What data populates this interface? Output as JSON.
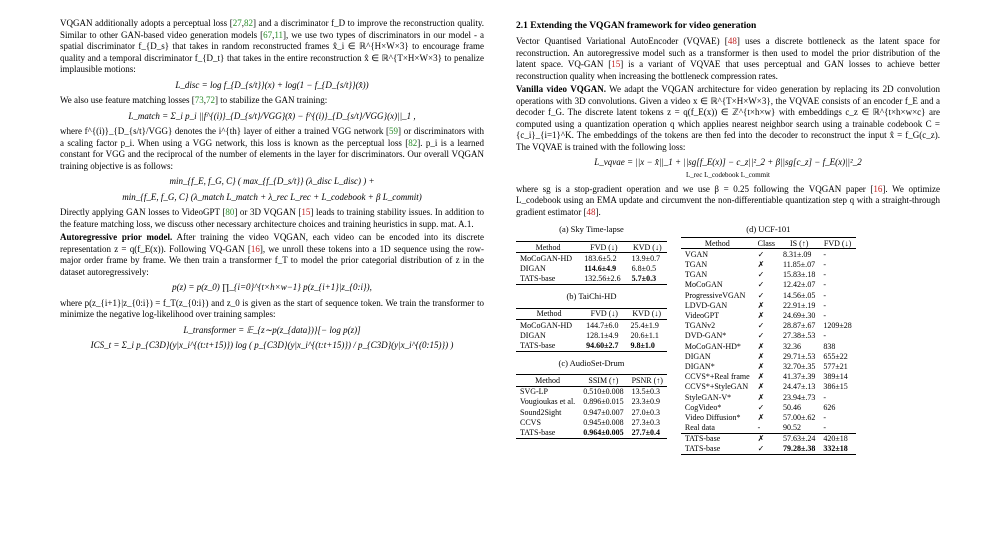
{
  "left": {
    "p1_a": "VQGAN additionally adopts a perceptual loss [",
    "p1_c1": "27",
    "p1_b": ",",
    "p1_c2": "82",
    "p1_c": "] and a discriminator f_D to improve the reconstruction quality. Similar to other GAN-based video generation models [",
    "p1_c3": "67",
    "p1_d": ",",
    "p1_c4": "11",
    "p1_e": "], we use two types of discriminators in our model - a spatial discriminator f_{D_s} that takes in random reconstructed frames x̂_i ∈ ℝ^{H×W×3} to encourage frame quality and a temporal discriminator f_{D_t} that takes in the entire reconstruction x̂ ∈ ℝ^{T×H×W×3} to penalize implausible motions:",
    "eq1": "L_disc = log f_{D_{s/t}}(x) + log(1 − f_{D_{s/t}}(x̂))",
    "p2_a": "We also use feature matching losses [",
    "p2_c1": "73",
    "p2_b": ",",
    "p2_c2": "72",
    "p2_c": "] to stabilize the GAN training:",
    "eq2": "L_match = Σ_i p_i ||f^{(i)}_{D_{s/t}/VGG}(x̂) − f^{(i)}_{D_{s/t}/VGG}(x)||_1 ,",
    "p3_a": "where f^{(i)}_{D_{s/t}/VGG} denotes the i^{th} layer of either a trained VGG network [",
    "p3_c1": "59",
    "p3_b": "] or discriminators with a scaling factor p_i. When using a VGG network, this loss is known as the perceptual loss [",
    "p3_c2": "82",
    "p3_c": "]. p_i is a learned constant for VGG and the reciprocal of the number of elements in the layer for discriminators. Our overall VQGAN training objective is as follows:",
    "eq3a": "min_{f_E, f_G, C} ( max_{f_{D_s/t}} (λ_disc L_disc) ) +",
    "eq3b": "min_{f_E, f_G, C} (λ_match L_match + λ_rec L_rec + L_codebook + β L_commit)",
    "p4_a": "Directly applying GAN losses to VideoGPT [",
    "p4_c1": "80",
    "p4_b": "] or 3D VQGAN [",
    "p4_c2": "15",
    "p4_c": "] leads to training stability issues. In addition to the feature matching loss, we discuss other necessary architecture choices and training heuristics in supp. mat. A.1.",
    "p5_h": "Autoregressive prior model.",
    "p5_a": " After training the video VQGAN, each video can be encoded into its discrete representation z = q(f_E(x)). Following VQ-GAN [",
    "p5_c1": "16",
    "p5_b": "], we unroll these tokens into a 1D sequence using the row-major order frame by frame. We then train a transformer f_T to model the prior categorial distribution of z in the dataset autoregressively:",
    "eq4": "p(z) = p(z_0)  ∏_{i=0}^{t×h×w−1} p(z_{i+1}|z_{0:i}),",
    "p6": "where p(z_{i+1}|z_{0:i}) = f_T(z_{0:i}) and z_0 is given as the start of sequence token. We train the transformer to minimize the negative log-likelihood over training samples:",
    "eq5": "L_transformer = 𝔼_{z∼p(z_{data})}[− log p(z)]",
    "eq6": "ICS_t = Σ_i p_{C3D}(y|x_i^{(t:t+15)}) log ( p_{C3D}(y|x_i^{(t:t+15)}) / p_{C3D}(y|x_i^{(0:15)}) )"
  },
  "right": {
    "sec": "2.1    Extending the VQGAN framework for video generation",
    "p1_a": "Vector Quantised Variational AutoEncoder (VQVAE) [",
    "p1_c1": "48",
    "p1_b": "] uses a discrete bottleneck as the latent space for reconstruction. An autoregressive model such as a transformer is then used to model the prior distribution of the latent space. VQ-GAN [",
    "p1_c2": "15",
    "p1_c": "] is a variant of VQVAE that uses perceptual and GAN losses to achieve better reconstruction quality when increasing the bottleneck compression rates.",
    "p2_h": "Vanilla video VQGAN.",
    "p2_a": " We adapt the VQGAN architecture for video generation by replacing its 2D convolution operations with 3D convolutions. Given a video x ∈ ℝ^{T×H×W×3}, the VQVAE consists of an encoder f_E and a decoder f_G. The discrete latent tokens z = q(f_E(x)) ∈ ℤ^{t×h×w} with embeddings c_z ∈ ℝ^{t×h×w×c} are computed using a quantization operation q which applies nearest neighbor search using a trainable codebook C = {c_i}_{i=1}^K. The embeddings of the tokens are then fed into the decoder to reconstruct the input x̂ = f_G(c_z). The VQVAE is trained with the following loss:",
    "eq": "L_vqvae = ||x − x̂||_1  +  ||sg[f_E(x)] − c_z||²_2  +  β||sg[c_z] − f_E(x)||²_2",
    "eq_sub": "L_rec                    L_codebook                              L_commit",
    "p3_a": "where sg is a stop-gradient operation and we use β = 0.25 following the VQGAN paper [",
    "p3_c1": "16",
    "p3_b": "]. We optimize L_codebook using an EMA update and circumvent the non-differentiable quantization step q with a straight-through gradient estimator [",
    "p3_c2": "48",
    "p3_c": "].",
    "tab_a": {
      "caption": "(a) Sky Time-lapse",
      "head": [
        "Method",
        "FVD (↓)",
        "KVD (↓)"
      ],
      "rows": [
        [
          "MoCoGAN-HD",
          "183.6±5.2",
          "13.9±0.7"
        ],
        [
          "DIGAN",
          "114.6±4.9",
          "6.8±0.5"
        ],
        [
          "TATS-base",
          "132.56±2.6",
          "5.7±0.3"
        ]
      ]
    },
    "tab_b": {
      "caption": "(b) TaiChi-HD",
      "head": [
        "Method",
        "FVD (↓)",
        "KVD (↓)"
      ],
      "rows": [
        [
          "MoCoGAN-HD",
          "144.7±6.0",
          "25.4±1.9"
        ],
        [
          "DIGAN",
          "128.1±4.9",
          "20.6±1.1"
        ],
        [
          "TATS-base",
          "94.60±2.7",
          "9.8±1.0"
        ]
      ]
    },
    "tab_c": {
      "caption": "(c) AudioSet-Drum",
      "head": [
        "Method",
        "SSIM (↑)",
        "PSNR (↑)"
      ],
      "rows": [
        [
          "SVG-LP",
          "0.510±0.008",
          "13.5±0.3"
        ],
        [
          "Vougioukas et al.",
          "0.896±0.015",
          "23.3±0.9"
        ],
        [
          "Sound2Sight",
          "0.947±0.007",
          "27.0±0.3"
        ],
        [
          "CCVS",
          "0.945±0.008",
          "27.3±0.3"
        ],
        [
          "TATS-base",
          "0.964±0.005",
          "27.7±0.4"
        ]
      ]
    },
    "tab_d": {
      "caption": "(d) UCF-101",
      "head": [
        "Method",
        "Class",
        "IS (↑)",
        "FVD (↓)"
      ],
      "rows": [
        [
          "VGAN",
          "✓",
          "8.31±.09",
          "-"
        ],
        [
          "TGAN",
          "✗",
          "11.85±.07",
          "-"
        ],
        [
          "TGAN",
          "✓",
          "15.83±.18",
          "-"
        ],
        [
          "MoCoGAN",
          "✓",
          "12.42±.07",
          "-"
        ],
        [
          "ProgressiveVGAN",
          "✓",
          "14.56±.05",
          "-"
        ],
        [
          "LDVD-GAN",
          "✗",
          "22.91±.19",
          "-"
        ],
        [
          "VideoGPT",
          "✗",
          "24.69±.30",
          "-"
        ],
        [
          "TGANv2",
          "✓",
          "28.87±.67",
          "1209±28"
        ],
        [
          "DVD-GAN*",
          "✓",
          "27.38±.53",
          "-"
        ],
        [
          "MoCoGAN-HD*",
          "✗",
          "32.36",
          "838"
        ],
        [
          "DIGAN",
          "✗",
          "29.71±.53",
          "655±22"
        ],
        [
          "DIGAN*",
          "✗",
          "32.70±.35",
          "577±21"
        ],
        [
          "CCVS*+Real frame",
          "✗",
          "41.37±.39",
          "389±14"
        ],
        [
          "CCVS*+StyleGAN",
          "✗",
          "24.47±.13",
          "386±15"
        ],
        [
          "StyleGAN-V*",
          "✗",
          "23.94±.73",
          "-"
        ],
        [
          "CogVideo*",
          "✓",
          "50.46",
          "626"
        ],
        [
          "Video Diffusion*",
          "✗",
          "57.00±.62",
          "-"
        ],
        [
          "Real data",
          "-",
          "90.52",
          "-"
        ],
        [
          "TATS-base",
          "✗",
          "57.63±.24",
          "420±18"
        ],
        [
          "TATS-base",
          "✓",
          "79.28±.38",
          "332±18"
        ]
      ]
    }
  }
}
